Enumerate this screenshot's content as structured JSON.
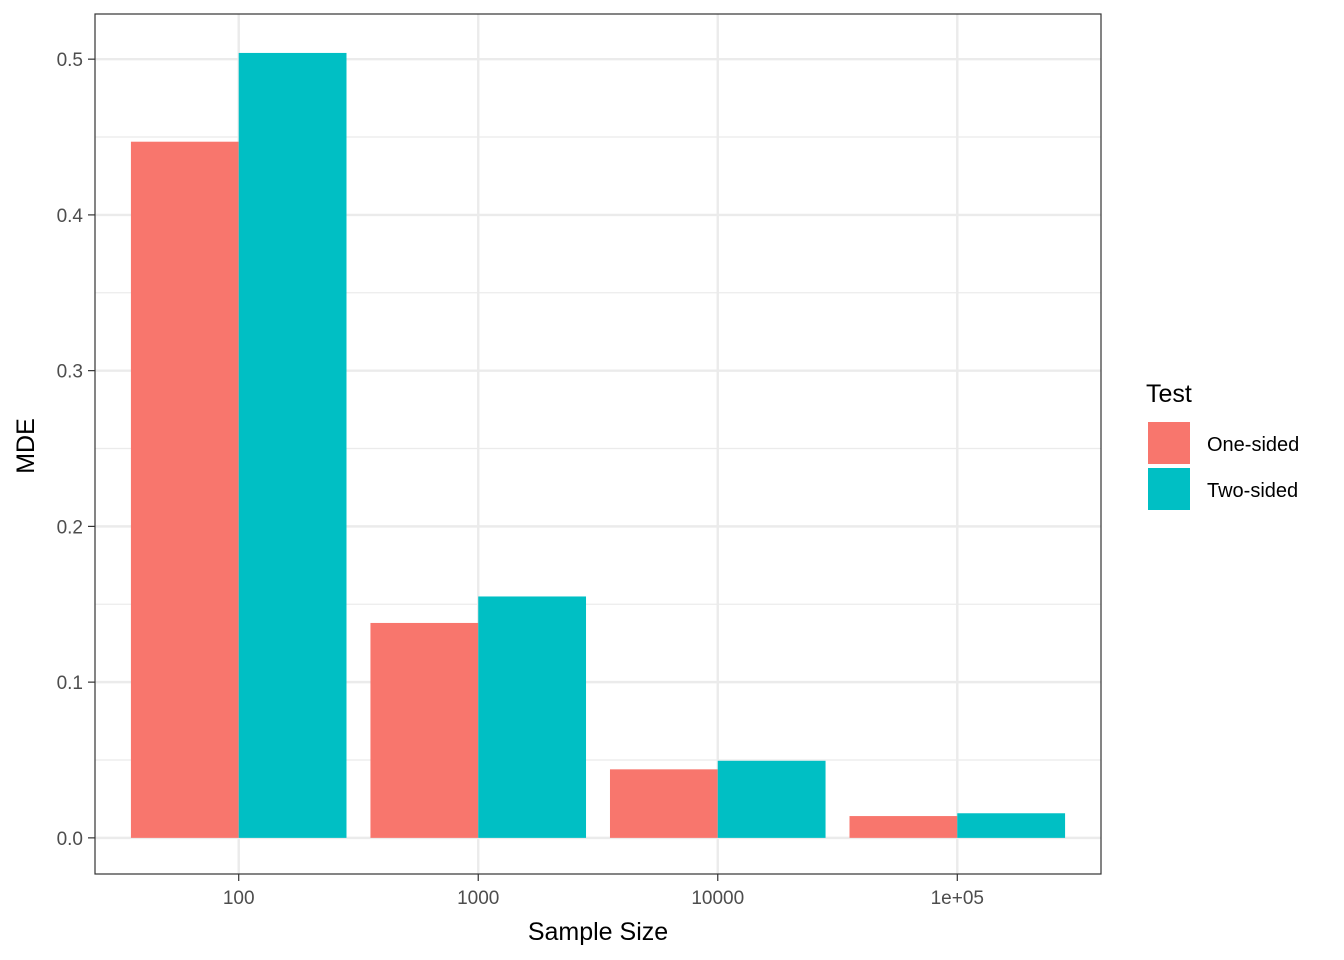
{
  "chart_data": {
    "type": "bar",
    "title": "",
    "xlabel": "Sample Size",
    "ylabel": "MDE",
    "categories": [
      "100",
      "1000",
      "10000",
      "1e+05"
    ],
    "series": [
      {
        "name": "One-sided",
        "color": "#F8766D",
        "values": [
          0.447,
          0.138,
          0.044,
          0.014
        ]
      },
      {
        "name": "Two-sided",
        "color": "#00BFC4",
        "values": [
          0.504,
          0.155,
          0.0495,
          0.0158
        ]
      }
    ],
    "ylim": [
      -0.0232,
      0.529
    ],
    "yticks": [
      0.0,
      0.1,
      0.2,
      0.3,
      0.4,
      0.5
    ],
    "ytick_labels": [
      "0.0",
      "0.1",
      "0.2",
      "0.3",
      "0.4",
      "0.5"
    ],
    "grid": true,
    "legend": {
      "title": "Test",
      "position": "right"
    }
  }
}
